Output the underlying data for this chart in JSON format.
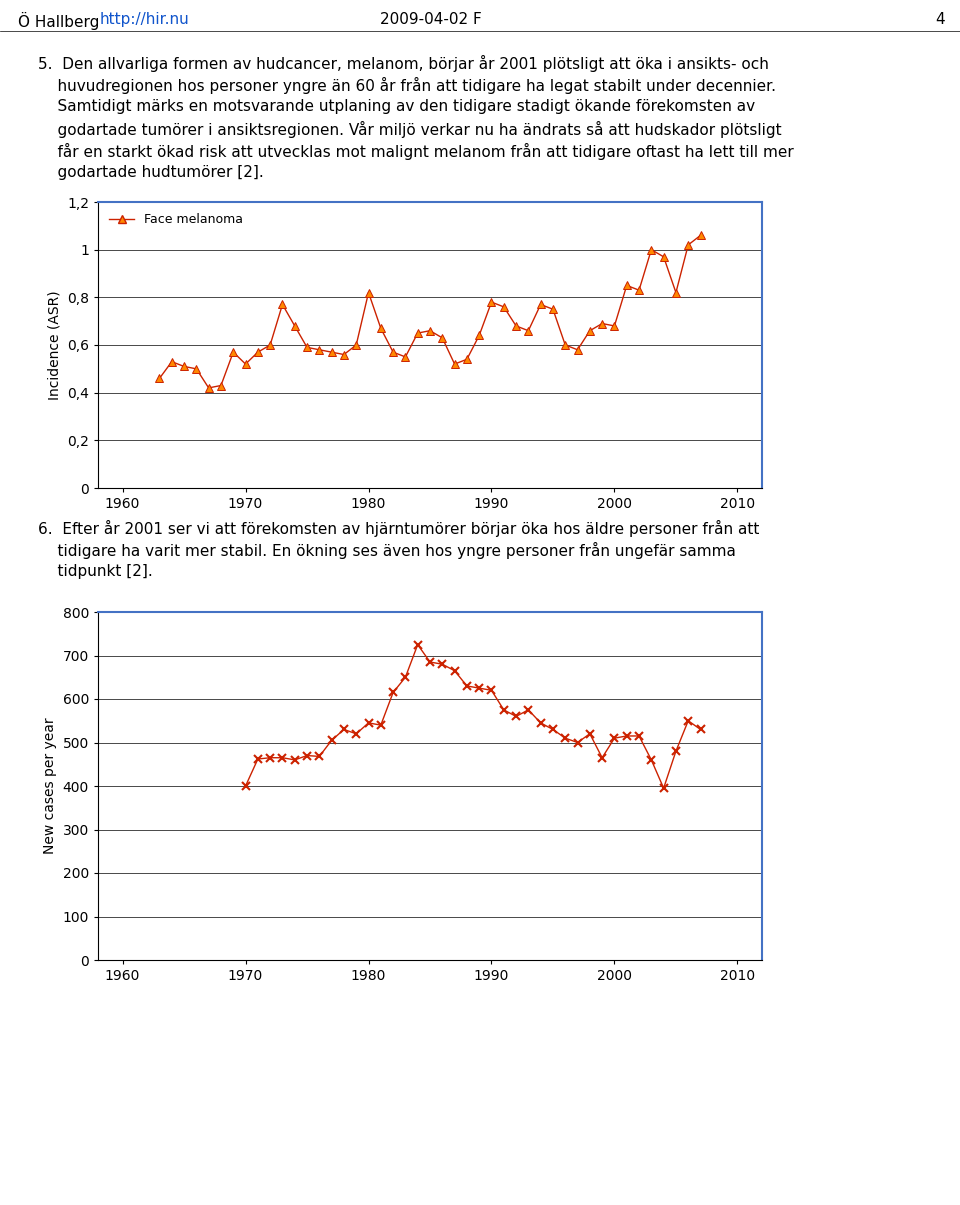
{
  "chart1": {
    "legend": "Face melanoma",
    "ylabel": "Incidence (ASR)",
    "xlim": [
      1958,
      2012
    ],
    "ylim": [
      0,
      1.2
    ],
    "yticks": [
      0,
      0.2,
      0.4,
      0.6,
      0.8,
      1.0,
      1.2
    ],
    "ytick_labels": [
      "0",
      "0,2",
      "0,4",
      "0,6",
      "0,8",
      "1",
      "1,2"
    ],
    "xticks": [
      1960,
      1970,
      1980,
      1990,
      2000,
      2010
    ],
    "line_color": "#CC2200",
    "marker_color": "#FF8800",
    "marker": "^",
    "years": [
      1963,
      1964,
      1965,
      1966,
      1967,
      1968,
      1969,
      1970,
      1971,
      1972,
      1973,
      1974,
      1975,
      1976,
      1977,
      1978,
      1979,
      1980,
      1981,
      1982,
      1983,
      1984,
      1985,
      1986,
      1987,
      1988,
      1989,
      1990,
      1991,
      1992,
      1993,
      1994,
      1995,
      1996,
      1997,
      1998,
      1999,
      2000,
      2001,
      2002,
      2003,
      2004,
      2005,
      2006,
      2007
    ],
    "values": [
      0.46,
      0.53,
      0.51,
      0.5,
      0.42,
      0.43,
      0.57,
      0.52,
      0.57,
      0.6,
      0.77,
      0.68,
      0.59,
      0.58,
      0.57,
      0.56,
      0.6,
      0.82,
      0.67,
      0.57,
      0.55,
      0.65,
      0.66,
      0.63,
      0.52,
      0.54,
      0.64,
      0.78,
      0.76,
      0.68,
      0.66,
      0.77,
      0.75,
      0.6,
      0.58,
      0.66,
      0.69,
      0.68,
      0.85,
      0.83,
      1.0,
      0.97,
      0.82,
      1.02,
      1.06
    ]
  },
  "chart2": {
    "ylabel": "New cases per year",
    "xlim": [
      1958,
      2012
    ],
    "ylim": [
      0,
      800
    ],
    "yticks": [
      0,
      100,
      200,
      300,
      400,
      500,
      600,
      700,
      800
    ],
    "xticks": [
      1960,
      1970,
      1980,
      1990,
      2000,
      2010
    ],
    "line_color": "#CC2200",
    "marker_color": "#CC2200",
    "marker": "x",
    "years": [
      1970,
      1971,
      1972,
      1973,
      1974,
      1975,
      1976,
      1977,
      1978,
      1979,
      1980,
      1981,
      1982,
      1983,
      1984,
      1985,
      1986,
      1987,
      1988,
      1989,
      1990,
      1991,
      1992,
      1993,
      1994,
      1995,
      1996,
      1997,
      1998,
      1999,
      2000,
      2001,
      2002,
      2003,
      2004,
      2005,
      2006,
      2007
    ],
    "values": [
      400,
      462,
      465,
      465,
      460,
      470,
      468,
      505,
      530,
      520,
      545,
      540,
      615,
      650,
      725,
      685,
      680,
      665,
      630,
      625,
      620,
      575,
      560,
      575,
      545,
      530,
      510,
      500,
      520,
      465,
      510,
      515,
      515,
      460,
      395,
      480,
      550,
      530
    ]
  },
  "bg_color": "#ffffff",
  "spine_color_blue": "#4472C4",
  "header_text": "O Hallberg ",
  "header_link": "http://hir.nu",
  "header_date": "2009-04-02 F",
  "header_page": "4",
  "para5_lines": [
    "5.  Den allvarliga formen av hudcancer, melanom, börjar år 2001 plötsligt att öka i ansikts- och",
    "    huvudregionen hos personer yngre än 60 år från att tidigare ha legat stabilt under decennier.",
    "    Samtidigt märks en motsvarande utplaning av den tidigare stadigt ökande förekomsten av",
    "    godartade tumörer i ansiktsregionen. Vår miljö verkar nu ha ändrats så att hudskador plötsligt",
    "    får en starkt ökad risk att utvecklas mot malignt melanom från att tidigare oftast ha lett till mer",
    "    godartade hudtumörer [2]."
  ],
  "para6_lines": [
    "6.  Efter år 2001 ser vi att förekomsten av hjärntumörer börjar öka hos äldre personer från att",
    "    tidigare ha varit mer stabil. En ökning ses även hos yngre personer från ungefär samma",
    "    tidpunkt [2]."
  ]
}
